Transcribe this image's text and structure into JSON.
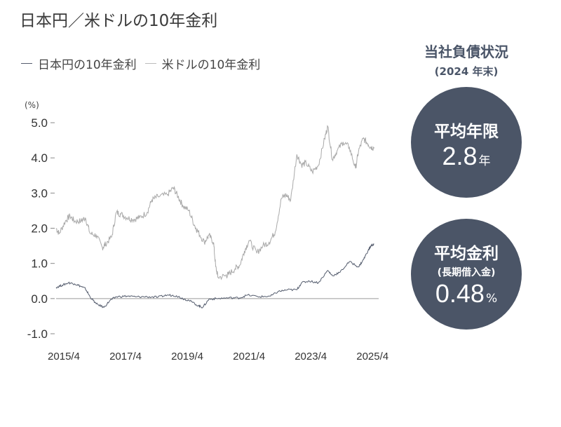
{
  "title": "日本円／米ドルの10年金利",
  "legend": [
    {
      "label": "日本円の10年金利",
      "color": "#555d6e"
    },
    {
      "label": "米ドルの10年金利",
      "color": "#bcbcbc"
    }
  ],
  "unit": "(%)",
  "side_panel": {
    "heading": "当社負債状況",
    "subheading": "(2024 年末)",
    "stats": [
      {
        "label": "平均年限",
        "sublabel": "",
        "value": "2.8",
        "unit": "年"
      },
      {
        "label": "平均金利",
        "sublabel": "(長期借入金)",
        "value": "0.48",
        "unit": "%"
      }
    ],
    "circle_color": "#4b5567"
  },
  "chart_data": {
    "type": "line",
    "ylim": [
      -1.0,
      5.0
    ],
    "y_ticks": [
      "5.0",
      "4.0",
      "3.0",
      "2.0",
      "1.0",
      "0.0",
      "-1.0"
    ],
    "y_tick_values": [
      5.0,
      4.0,
      3.0,
      2.0,
      1.0,
      0.0,
      -1.0
    ],
    "x_range": [
      2015.0,
      2025.45
    ],
    "x_ticks": [
      "2015/4",
      "2017/4",
      "2019/4",
      "2021/4",
      "2023/4",
      "2025/4"
    ],
    "x_tick_values": [
      2015.25,
      2017.25,
      2019.25,
      2021.25,
      2023.25,
      2025.25
    ],
    "series": [
      {
        "name": "米ドルの10年金利",
        "color": "#a9a9a9",
        "x": [
          2015.0,
          2015.1,
          2015.3,
          2015.45,
          2015.6,
          2015.8,
          2015.95,
          2016.1,
          2016.3,
          2016.5,
          2016.6,
          2016.8,
          2016.95,
          2017.1,
          2017.3,
          2017.5,
          2017.7,
          2017.95,
          2018.1,
          2018.3,
          2018.6,
          2018.8,
          2018.95,
          2019.1,
          2019.3,
          2019.5,
          2019.6,
          2019.8,
          2019.95,
          2020.1,
          2020.17,
          2020.25,
          2020.5,
          2020.6,
          2020.8,
          2020.95,
          2021.1,
          2021.25,
          2021.5,
          2021.7,
          2021.9,
          2022.1,
          2022.3,
          2022.45,
          2022.6,
          2022.8,
          2022.95,
          2023.1,
          2023.3,
          2023.5,
          2023.7,
          2023.8,
          2023.95,
          2024.1,
          2024.3,
          2024.5,
          2024.7,
          2024.8,
          2024.95,
          2025.1,
          2025.2,
          2025.3
        ],
        "values": [
          2.0,
          1.85,
          2.2,
          2.35,
          2.2,
          2.2,
          2.3,
          1.85,
          1.8,
          1.45,
          1.55,
          1.75,
          2.45,
          2.4,
          2.3,
          2.25,
          2.3,
          2.45,
          2.8,
          2.9,
          2.95,
          3.15,
          2.9,
          2.65,
          2.5,
          2.05,
          1.9,
          1.6,
          1.8,
          1.6,
          0.9,
          0.6,
          0.65,
          0.7,
          0.85,
          0.95,
          1.35,
          1.65,
          1.3,
          1.5,
          1.6,
          1.9,
          2.85,
          2.95,
          2.8,
          4.1,
          3.8,
          3.85,
          3.6,
          3.8,
          4.55,
          4.9,
          3.95,
          4.2,
          4.45,
          4.3,
          3.7,
          4.2,
          4.55,
          4.4,
          4.3,
          4.3
        ]
      },
      {
        "name": "日本円の10年金利",
        "color": "#555d6e",
        "x": [
          2015.0,
          2015.2,
          2015.4,
          2015.6,
          2015.8,
          2015.95,
          2016.1,
          2016.3,
          2016.55,
          2016.75,
          2016.95,
          2017.3,
          2017.6,
          2017.95,
          2018.3,
          2018.6,
          2018.9,
          2019.1,
          2019.3,
          2019.6,
          2019.75,
          2019.95,
          2020.2,
          2020.6,
          2020.95,
          2021.2,
          2021.6,
          2021.95,
          2022.2,
          2022.5,
          2022.8,
          2022.95,
          2023.2,
          2023.5,
          2023.8,
          2023.95,
          2024.2,
          2024.5,
          2024.8,
          2024.95,
          2025.1,
          2025.2,
          2025.3
        ],
        "values": [
          0.32,
          0.38,
          0.45,
          0.42,
          0.35,
          0.28,
          0.05,
          -0.15,
          -0.25,
          -0.05,
          0.05,
          0.07,
          0.05,
          0.05,
          0.04,
          0.1,
          0.08,
          0.0,
          -0.05,
          -0.2,
          -0.25,
          -0.02,
          0.0,
          0.02,
          0.02,
          0.1,
          0.05,
          0.07,
          0.2,
          0.25,
          0.25,
          0.45,
          0.5,
          0.45,
          0.8,
          0.65,
          0.75,
          1.05,
          0.9,
          1.1,
          1.35,
          1.5,
          1.55
        ]
      }
    ]
  }
}
